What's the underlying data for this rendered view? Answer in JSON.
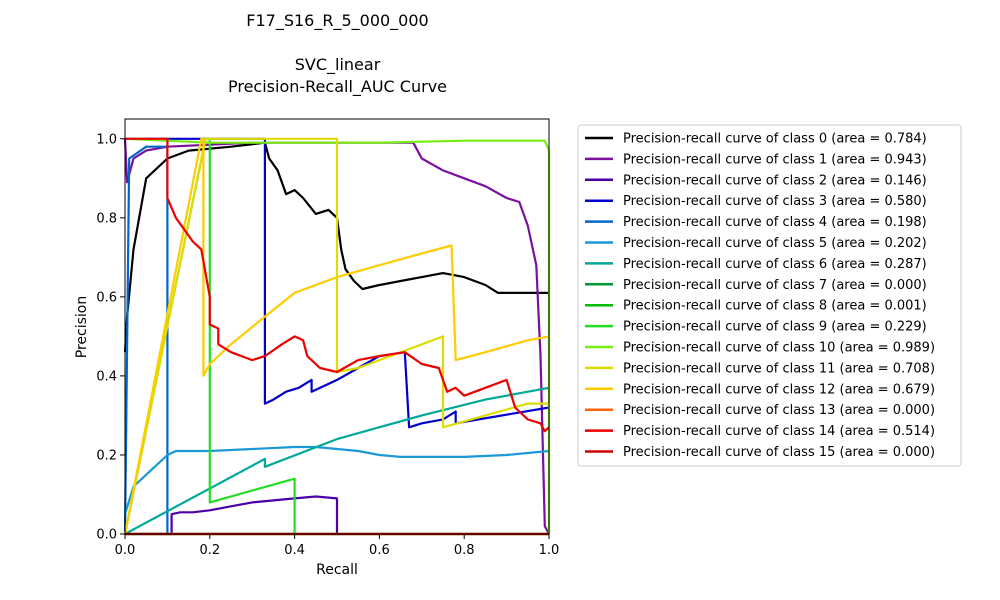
{
  "chart_data": {
    "type": "line",
    "title_lines": [
      "F17_S16_R_5_000_000",
      "",
      "SVC_linear",
      "Precision-Recall_AUC Curve"
    ],
    "xlabel": "Recall",
    "ylabel": "Precision",
    "xlim": [
      0.0,
      1.0
    ],
    "ylim": [
      0.0,
      1.05
    ],
    "xticks": [
      "0.0",
      "0.2",
      "0.4",
      "0.6",
      "0.8",
      "1.0"
    ],
    "yticks": [
      "0.0",
      "0.2",
      "0.4",
      "0.6",
      "0.8",
      "1.0"
    ],
    "grid": false,
    "legend_position": "right-outside",
    "series": [
      {
        "name": "Precision-recall curve of class 0 (area = 0.784)",
        "color": "#000000",
        "points": [
          [
            0,
            0.46
          ],
          [
            0.005,
            0.55
          ],
          [
            0.02,
            0.72
          ],
          [
            0.05,
            0.9
          ],
          [
            0.1,
            0.95
          ],
          [
            0.15,
            0.97
          ],
          [
            0.25,
            0.98
          ],
          [
            0.33,
            0.99
          ],
          [
            0.34,
            0.95
          ],
          [
            0.36,
            0.92
          ],
          [
            0.38,
            0.86
          ],
          [
            0.4,
            0.87
          ],
          [
            0.42,
            0.85
          ],
          [
            0.45,
            0.81
          ],
          [
            0.48,
            0.82
          ],
          [
            0.5,
            0.8
          ],
          [
            0.51,
            0.72
          ],
          [
            0.52,
            0.67
          ],
          [
            0.54,
            0.64
          ],
          [
            0.56,
            0.62
          ],
          [
            0.6,
            0.63
          ],
          [
            0.65,
            0.64
          ],
          [
            0.7,
            0.65
          ],
          [
            0.75,
            0.66
          ],
          [
            0.8,
            0.65
          ],
          [
            0.85,
            0.63
          ],
          [
            0.88,
            0.61
          ],
          [
            0.92,
            0.61
          ],
          [
            0.95,
            0.61
          ],
          [
            0.99,
            0.61
          ],
          [
            1.0,
            0.61
          ]
        ]
      },
      {
        "name": "Precision-recall curve of class 1 (area = 0.943)",
        "color": "#7b0f9e",
        "points": [
          [
            0,
            1.0
          ],
          [
            0.005,
            0.89
          ],
          [
            0.02,
            0.95
          ],
          [
            0.05,
            0.97
          ],
          [
            0.1,
            0.98
          ],
          [
            0.2,
            0.985
          ],
          [
            0.3,
            0.99
          ],
          [
            0.5,
            0.99
          ],
          [
            0.65,
            0.99
          ],
          [
            0.68,
            0.99
          ],
          [
            0.7,
            0.95
          ],
          [
            0.75,
            0.92
          ],
          [
            0.8,
            0.9
          ],
          [
            0.85,
            0.88
          ],
          [
            0.9,
            0.85
          ],
          [
            0.93,
            0.84
          ],
          [
            0.95,
            0.78
          ],
          [
            0.97,
            0.68
          ],
          [
            0.98,
            0.45
          ],
          [
            0.99,
            0.02
          ],
          [
            1.0,
            0.0
          ]
        ]
      },
      {
        "name": "Precision-recall curve of class 2 (area = 0.146)",
        "color": "#4b00a8",
        "points": [
          [
            0,
            0.0
          ],
          [
            0.11,
            0.0
          ],
          [
            0.11,
            0.05
          ],
          [
            0.13,
            0.055
          ],
          [
            0.16,
            0.055
          ],
          [
            0.2,
            0.06
          ],
          [
            0.25,
            0.07
          ],
          [
            0.3,
            0.08
          ],
          [
            0.35,
            0.085
          ],
          [
            0.4,
            0.09
          ],
          [
            0.45,
            0.095
          ],
          [
            0.5,
            0.09
          ],
          [
            0.5,
            0.0
          ]
        ]
      },
      {
        "name": "Precision-recall curve of class 3 (area = 0.580)",
        "color": "#0000cc",
        "points": [
          [
            0,
            1.0
          ],
          [
            0.33,
            1.0
          ],
          [
            0.33,
            0.33
          ],
          [
            0.35,
            0.34
          ],
          [
            0.38,
            0.36
          ],
          [
            0.41,
            0.37
          ],
          [
            0.44,
            0.39
          ],
          [
            0.44,
            0.36
          ],
          [
            0.5,
            0.39
          ],
          [
            0.55,
            0.42
          ],
          [
            0.6,
            0.45
          ],
          [
            0.66,
            0.46
          ],
          [
            0.67,
            0.27
          ],
          [
            0.7,
            0.28
          ],
          [
            0.75,
            0.29
          ],
          [
            0.78,
            0.31
          ],
          [
            0.78,
            0.28
          ],
          [
            1.0,
            0.32
          ]
        ]
      },
      {
        "name": "Precision-recall curve of class 4 (area = 0.198)",
        "color": "#0066cc",
        "points": [
          [
            0,
            0.0
          ],
          [
            0.01,
            0.95
          ],
          [
            0.05,
            0.98
          ],
          [
            0.09,
            0.98
          ],
          [
            0.1,
            0.98
          ],
          [
            0.1,
            0.0
          ],
          [
            0.1,
            0.0
          ]
        ]
      },
      {
        "name": "Precision-recall curve of class 5 (area = 0.202)",
        "color": "#1a99d6",
        "points": [
          [
            0,
            0.05
          ],
          [
            0.02,
            0.12
          ],
          [
            0.05,
            0.15
          ],
          [
            0.08,
            0.18
          ],
          [
            0.1,
            0.2
          ],
          [
            0.12,
            0.21
          ],
          [
            0.2,
            0.21
          ],
          [
            0.3,
            0.215
          ],
          [
            0.4,
            0.22
          ],
          [
            0.45,
            0.22
          ],
          [
            0.5,
            0.215
          ],
          [
            0.55,
            0.21
          ],
          [
            0.6,
            0.2
          ],
          [
            0.65,
            0.195
          ],
          [
            0.7,
            0.195
          ],
          [
            0.8,
            0.195
          ],
          [
            0.9,
            0.2
          ],
          [
            1.0,
            0.21
          ]
        ]
      },
      {
        "name": "Precision-recall curve of class 6 (area = 0.287)",
        "color": "#00a89a",
        "points": [
          [
            0,
            0.0
          ],
          [
            0.33,
            0.19
          ],
          [
            0.33,
            0.17
          ],
          [
            0.5,
            0.24
          ],
          [
            0.7,
            0.3
          ],
          [
            0.85,
            0.34
          ],
          [
            1.0,
            0.37
          ]
        ]
      },
      {
        "name": "Precision-recall curve of class 7 (area = 0.000)",
        "color": "#009933",
        "points": [
          [
            0,
            0.0
          ],
          [
            1.0,
            0.0
          ]
        ]
      },
      {
        "name": "Precision-recall curve of class 8 (area = 0.001)",
        "color": "#00bb00",
        "points": [
          [
            0,
            0.0
          ],
          [
            1.0,
            0.0
          ]
        ]
      },
      {
        "name": "Precision-recall curve of class 9 (area = 0.229)",
        "color": "#22dd22",
        "points": [
          [
            0,
            0.0
          ],
          [
            0.19,
            1.0
          ],
          [
            0.2,
            1.0
          ],
          [
            0.2,
            0.08
          ],
          [
            0.3,
            0.11
          ],
          [
            0.4,
            0.14
          ],
          [
            0.4,
            0.0
          ]
        ]
      },
      {
        "name": "Precision-recall curve of class 10 (area = 0.989)",
        "color": "#77ee11",
        "points": [
          [
            0,
            1.0
          ],
          [
            0.2,
            0.99
          ],
          [
            0.4,
            0.99
          ],
          [
            0.6,
            0.99
          ],
          [
            0.8,
            0.995
          ],
          [
            0.99,
            0.995
          ],
          [
            1.0,
            0.97
          ],
          [
            1.0,
            0.0
          ]
        ]
      },
      {
        "name": "Precision-recall curve of class 11 (area = 0.708)",
        "color": "#dddd00",
        "points": [
          [
            0,
            0.0
          ],
          [
            0.19,
            1.0
          ],
          [
            0.5,
            1.0
          ],
          [
            0.5,
            0.41
          ],
          [
            0.55,
            0.42
          ],
          [
            0.6,
            0.44
          ],
          [
            0.7,
            0.48
          ],
          [
            0.75,
            0.5
          ],
          [
            0.75,
            0.27
          ],
          [
            0.85,
            0.3
          ],
          [
            0.95,
            0.33
          ],
          [
            1.0,
            0.33
          ]
        ]
      },
      {
        "name": "Precision-recall curve of class 12 (area = 0.679)",
        "color": "#ffcc00",
        "points": [
          [
            0,
            0.0
          ],
          [
            0.18,
            1.0
          ],
          [
            0.185,
            1.0
          ],
          [
            0.185,
            0.4
          ],
          [
            0.2,
            0.43
          ],
          [
            0.25,
            0.48
          ],
          [
            0.33,
            0.55
          ],
          [
            0.4,
            0.61
          ],
          [
            0.5,
            0.65
          ],
          [
            0.6,
            0.68
          ],
          [
            0.7,
            0.71
          ],
          [
            0.77,
            0.73
          ],
          [
            0.78,
            0.44
          ],
          [
            0.85,
            0.46
          ],
          [
            0.95,
            0.49
          ],
          [
            1.0,
            0.5
          ]
        ]
      },
      {
        "name": "Precision-recall curve of class 13 (area = 0.000)",
        "color": "#ff6600",
        "points": [
          [
            0,
            0.0
          ],
          [
            1.0,
            0.0
          ]
        ]
      },
      {
        "name": "Precision-recall curve of class 14 (area = 0.514)",
        "color": "#ee0000",
        "points": [
          [
            0,
            1.0
          ],
          [
            0.1,
            1.0
          ],
          [
            0.1,
            0.85
          ],
          [
            0.12,
            0.8
          ],
          [
            0.16,
            0.74
          ],
          [
            0.18,
            0.72
          ],
          [
            0.2,
            0.6
          ],
          [
            0.2,
            0.53
          ],
          [
            0.22,
            0.52
          ],
          [
            0.22,
            0.48
          ],
          [
            0.25,
            0.46
          ],
          [
            0.3,
            0.44
          ],
          [
            0.33,
            0.45
          ],
          [
            0.37,
            0.48
          ],
          [
            0.4,
            0.5
          ],
          [
            0.42,
            0.49
          ],
          [
            0.43,
            0.45
          ],
          [
            0.46,
            0.42
          ],
          [
            0.5,
            0.41
          ],
          [
            0.55,
            0.44
          ],
          [
            0.6,
            0.45
          ],
          [
            0.66,
            0.46
          ],
          [
            0.7,
            0.43
          ],
          [
            0.74,
            0.42
          ],
          [
            0.76,
            0.36
          ],
          [
            0.78,
            0.37
          ],
          [
            0.8,
            0.35
          ],
          [
            0.85,
            0.37
          ],
          [
            0.9,
            0.39
          ],
          [
            0.92,
            0.32
          ],
          [
            0.95,
            0.29
          ],
          [
            0.98,
            0.28
          ],
          [
            0.99,
            0.26
          ],
          [
            1.0,
            0.27
          ]
        ]
      },
      {
        "name": "Precision-recall curve of class 15 (area = 0.000)",
        "color": "#cc0000",
        "points": [
          [
            0,
            0.0
          ],
          [
            1.0,
            0.0
          ]
        ]
      }
    ]
  }
}
